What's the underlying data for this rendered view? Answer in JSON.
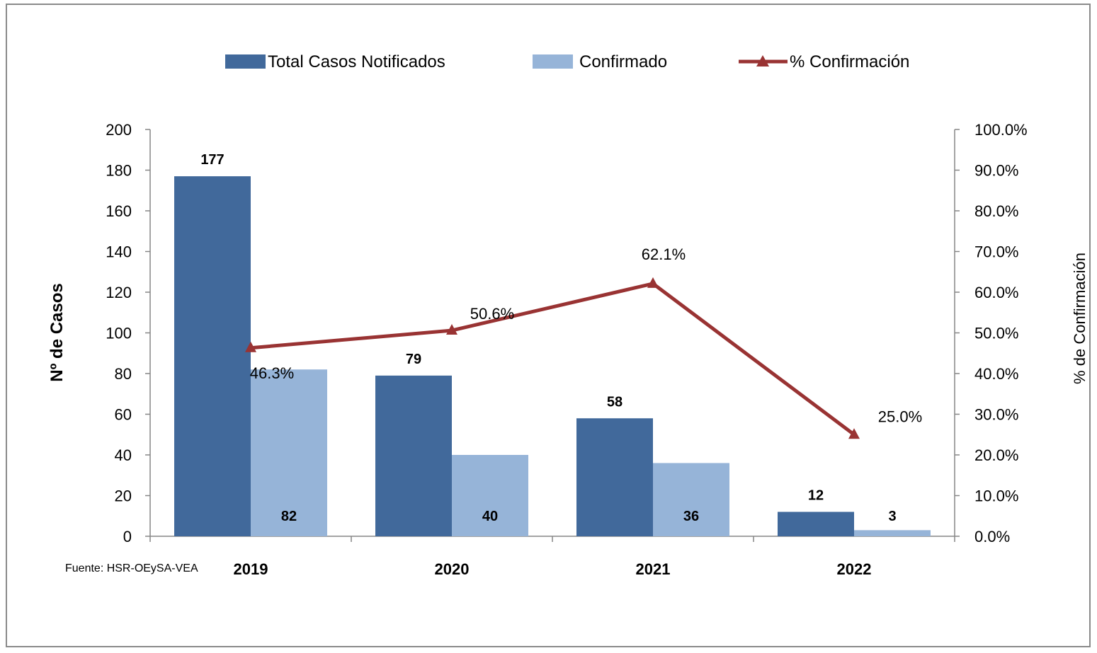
{
  "chart_data": {
    "type": "bar",
    "categories": [
      "2019",
      "2020",
      "2021",
      "2022"
    ],
    "series": [
      {
        "name": "Total Casos Notificados",
        "kind": "bar",
        "axis": "left",
        "color": "#41699b",
        "values": [
          177,
          79,
          58,
          12
        ]
      },
      {
        "name": "Confirmado",
        "kind": "bar",
        "axis": "left",
        "color": "#96b4d8",
        "values": [
          82,
          40,
          36,
          3
        ]
      },
      {
        "name": "% Confirmación",
        "kind": "line",
        "axis": "right",
        "color": "#993333",
        "values": [
          46.3,
          50.6,
          62.1,
          25.0
        ]
      }
    ],
    "bar_labels": {
      "total": [
        "177",
        "79",
        "58",
        "12"
      ],
      "confirmed": [
        "82",
        "40",
        "36",
        "3"
      ]
    },
    "pct_labels": [
      "46.3%",
      "50.6%",
      "62.1%",
      "25.0%"
    ],
    "ylabel": "Nº  de  Casos",
    "ylabel_right": "%  de  Confirmación",
    "ylim": [
      0,
      200
    ],
    "ylim_right": [
      0,
      100
    ],
    "yticks": [
      "0",
      "20",
      "40",
      "60",
      "80",
      "100",
      "120",
      "140",
      "160",
      "180",
      "200"
    ],
    "yticks_right": [
      "0.0%",
      "10.0%",
      "20.0%",
      "30.0%",
      "40.0%",
      "50.0%",
      "60.0%",
      "70.0%",
      "80.0%",
      "90.0%",
      "100.0%"
    ],
    "legend_position": "top",
    "grid": false
  },
  "source_note": "Fuente: HSR-OEySA-VEA"
}
